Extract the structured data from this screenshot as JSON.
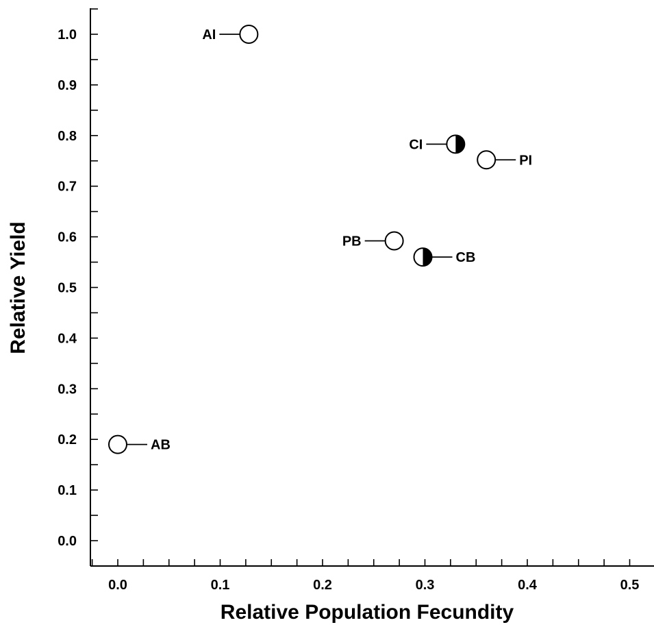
{
  "chart_data": {
    "type": "scatter",
    "xlabel": "Relative Population Fecundity",
    "ylabel": "Relative Yield",
    "xlim": [
      -0.025,
      0.52
    ],
    "ylim": [
      -0.05,
      1.05
    ],
    "x_ticks": [
      "0.0",
      "0.1",
      "0.2",
      "0.3",
      "0.4",
      "0.5"
    ],
    "y_ticks": [
      "0.0",
      "0.1",
      "0.2",
      "0.3",
      "0.4",
      "0.5",
      "0.6",
      "0.7",
      "0.8",
      "0.9",
      "1.0"
    ],
    "grid": false,
    "points": [
      {
        "label": "AI",
        "x": 0.128,
        "y": 1.0,
        "marker": "open",
        "label_side": "left"
      },
      {
        "label": "CI",
        "x": 0.33,
        "y": 0.783,
        "marker": "half-filled",
        "label_side": "left"
      },
      {
        "label": "PI",
        "x": 0.36,
        "y": 0.752,
        "marker": "open",
        "label_side": "right"
      },
      {
        "label": "PB",
        "x": 0.27,
        "y": 0.592,
        "marker": "open",
        "label_side": "left"
      },
      {
        "label": "CB",
        "x": 0.298,
        "y": 0.56,
        "marker": "half-filled",
        "label_side": "right"
      },
      {
        "label": "AB",
        "x": 0.0,
        "y": 0.19,
        "marker": "open",
        "label_side": "right"
      }
    ]
  }
}
